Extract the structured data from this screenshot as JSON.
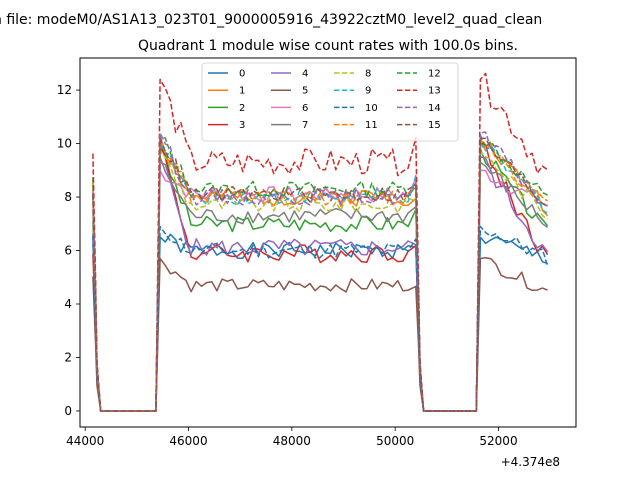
{
  "chart_data": {
    "type": "line",
    "suptitle": "n file: modeM0/AS1A13_023T01_9000005916_43922cztM0_level2_quad_clean",
    "title": "Quadrant 1 module wise count rates with 100.0s bins.",
    "xlabel": "",
    "ylabel": "",
    "x_offset_label": "+4.374e8",
    "xlim": [
      43900,
      53500
    ],
    "ylim": [
      -0.6,
      13.2
    ],
    "x_ticks": [
      44000,
      46000,
      48000,
      50000,
      52000
    ],
    "x_tick_labels": [
      "44000",
      "46000",
      "48000",
      "50000",
      "52000"
    ],
    "y_ticks": [
      0,
      2,
      4,
      6,
      8,
      10,
      12
    ],
    "y_tick_labels": [
      "0",
      "2",
      "4",
      "6",
      "8",
      "10",
      "12"
    ],
    "grid": false,
    "legend_placement": "top-center",
    "segments": [
      {
        "start": 44150,
        "plateau_start": 45450,
        "end": 50300,
        "step": 100
      },
      {
        "start": 50400,
        "plateau_start": 51650,
        "end": 52950,
        "step": 100
      }
    ],
    "series": [
      {
        "name": "0",
        "color": "#1f77b4",
        "dash": "solid",
        "level": 6.0,
        "peak": 6.5,
        "noise": 0.3,
        "seed": 1
      },
      {
        "name": "1",
        "color": "#ff7f0e",
        "dash": "solid",
        "level": 8.0,
        "peak": 10.2,
        "noise": 0.35,
        "seed": 2
      },
      {
        "name": "2",
        "color": "#2ca02c",
        "dash": "solid",
        "level": 7.0,
        "peak": 9.8,
        "noise": 0.3,
        "seed": 3
      },
      {
        "name": "3",
        "color": "#d62728",
        "dash": "solid",
        "level": 5.9,
        "peak": 10.0,
        "noise": 0.35,
        "seed": 4
      },
      {
        "name": "4",
        "color": "#9467bd",
        "dash": "solid",
        "level": 6.1,
        "peak": 9.5,
        "noise": 0.35,
        "seed": 5
      },
      {
        "name": "5",
        "color": "#8c564b",
        "dash": "solid",
        "level": 4.7,
        "peak": 5.7,
        "noise": 0.25,
        "seed": 6
      },
      {
        "name": "6",
        "color": "#e377c2",
        "dash": "solid",
        "level": 8.1,
        "peak": 9.0,
        "noise": 0.3,
        "seed": 7
      },
      {
        "name": "7",
        "color": "#7f7f7f",
        "dash": "solid",
        "level": 7.3,
        "peak": 9.3,
        "noise": 0.3,
        "seed": 8
      },
      {
        "name": "8",
        "color": "#bcbd22",
        "dash": "dashed",
        "level": 7.7,
        "peak": 9.7,
        "noise": 0.3,
        "seed": 9
      },
      {
        "name": "9",
        "color": "#17becf",
        "dash": "dashed",
        "level": 8.0,
        "peak": 10.0,
        "noise": 0.3,
        "seed": 10
      },
      {
        "name": "10",
        "color": "#1f77b4",
        "dash": "dashed",
        "level": 6.0,
        "peak": 6.9,
        "noise": 0.3,
        "seed": 11
      },
      {
        "name": "11",
        "color": "#ff7f0e",
        "dash": "dashed",
        "level": 8.0,
        "peak": 10.3,
        "noise": 0.3,
        "seed": 12
      },
      {
        "name": "12",
        "color": "#2ca02c",
        "dash": "dashed",
        "level": 8.3,
        "peak": 10.3,
        "noise": 0.3,
        "seed": 13
      },
      {
        "name": "13",
        "color": "#d62728",
        "dash": "dashed",
        "level": 9.3,
        "peak": 12.4,
        "noise": 0.5,
        "seed": 14
      },
      {
        "name": "14",
        "color": "#9467bd",
        "dash": "dashed",
        "level": 8.0,
        "peak": 10.4,
        "noise": 0.3,
        "seed": 15
      },
      {
        "name": "15",
        "color": "#8c564b",
        "dash": "dashed",
        "level": 8.1,
        "peak": 10.2,
        "noise": 0.3,
        "seed": 16
      }
    ]
  }
}
